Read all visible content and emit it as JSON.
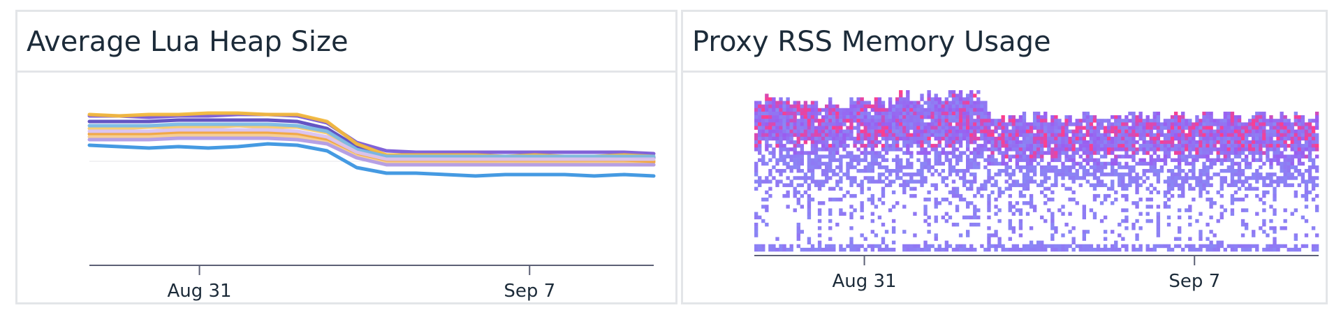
{
  "panels": [
    {
      "title": "Average Lua Heap Size"
    },
    {
      "title": "Proxy RSS Memory Usage"
    }
  ],
  "chart_data": [
    {
      "type": "line",
      "title": "Average Lua Heap Size",
      "x_ticks": [
        "Aug 31",
        "Sep 7"
      ],
      "xlabel": "",
      "ylabel": "",
      "x": [
        0,
        1,
        2,
        3,
        4,
        5,
        6,
        7,
        8,
        9,
        10,
        11,
        12,
        13,
        14,
        15,
        16,
        17,
        18,
        19
      ],
      "ylim": [
        0,
        100
      ],
      "grid": false,
      "series": [
        {
          "color": "#7a5bd6",
          "values": [
            89,
            89,
            88,
            89,
            89,
            90,
            90,
            89,
            84,
            70,
            64,
            63,
            63,
            63,
            63,
            63,
            63,
            63,
            63,
            62
          ]
        },
        {
          "color": "#5b4bc0",
          "values": [
            85,
            85,
            85,
            86,
            86,
            86,
            86,
            85,
            80,
            67,
            60,
            60,
            59,
            60,
            59,
            60,
            60,
            59,
            60,
            59
          ]
        },
        {
          "color": "#f2b83c",
          "values": [
            90,
            89,
            90,
            90,
            91,
            91,
            90,
            90,
            85,
            69,
            61,
            61,
            61,
            61,
            60,
            61,
            60,
            60,
            61,
            60
          ]
        },
        {
          "color": "#f7c96a",
          "values": [
            80,
            80,
            81,
            81,
            81,
            82,
            81,
            81,
            77,
            64,
            58,
            58,
            58,
            58,
            58,
            58,
            58,
            58,
            57,
            57
          ]
        },
        {
          "color": "#7ab9e6",
          "values": [
            82,
            82,
            82,
            83,
            83,
            83,
            83,
            82,
            78,
            65,
            60,
            60,
            60,
            60,
            60,
            60,
            60,
            60,
            60,
            60
          ]
        },
        {
          "color": "#f0a33c",
          "values": [
            76,
            76,
            76,
            77,
            77,
            77,
            77,
            76,
            72,
            62,
            57,
            57,
            57,
            56,
            57,
            56,
            56,
            57,
            56,
            56
          ]
        },
        {
          "color": "#d9c2f0",
          "values": [
            78,
            78,
            78,
            79,
            79,
            79,
            79,
            78,
            74,
            63,
            58,
            58,
            58,
            58,
            58,
            58,
            58,
            58,
            58,
            58
          ]
        },
        {
          "color": "#f5cc90",
          "values": [
            74,
            74,
            74,
            75,
            75,
            75,
            75,
            74,
            70,
            60,
            55,
            55,
            55,
            55,
            55,
            55,
            55,
            55,
            55,
            54
          ]
        },
        {
          "color": "#b29ce6",
          "values": [
            72,
            72,
            72,
            73,
            73,
            73,
            73,
            72,
            69,
            59,
            54,
            54,
            54,
            54,
            54,
            54,
            54,
            54,
            54,
            54
          ]
        },
        {
          "color": "#3b95e0",
          "values": [
            68,
            67,
            66,
            67,
            66,
            67,
            69,
            68,
            64,
            52,
            48,
            48,
            47,
            46,
            47,
            47,
            47,
            46,
            47,
            46
          ]
        }
      ]
    },
    {
      "type": "heatmap",
      "title": "Proxy RSS Memory Usage",
      "x_ticks": [
        "Aug 31",
        "Sep 7"
      ],
      "xlabel": "",
      "ylabel": "",
      "grid": false,
      "colors": {
        "low": "#8a87f5",
        "mid": "#9b5cf0",
        "high": "#ff3d8a"
      }
    }
  ]
}
